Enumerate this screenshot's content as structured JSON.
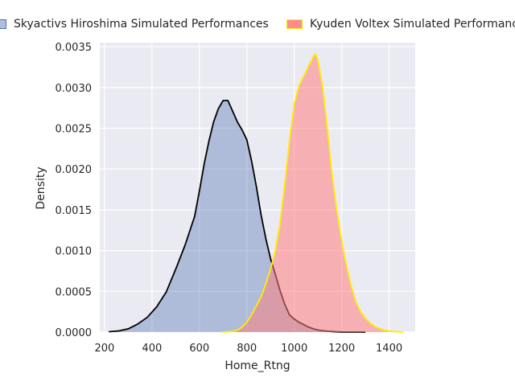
{
  "chart_data": {
    "type": "area",
    "title": "",
    "xlabel": "Home_Rtng",
    "ylabel": "Density",
    "xlim": [
      180,
      1510
    ],
    "ylim": [
      0,
      0.00355
    ],
    "x_ticks": [
      200,
      400,
      600,
      800,
      1000,
      1200,
      1400
    ],
    "y_ticks": [
      0.0,
      0.0005,
      0.001,
      0.0015,
      0.002,
      0.0025,
      0.003,
      0.0035
    ],
    "x_tick_labels": [
      "200",
      "400",
      "600",
      "800",
      "1000",
      "1200",
      "1400"
    ],
    "y_tick_labels": [
      "0.0000",
      "0.0005",
      "0.0010",
      "0.0015",
      "0.0020",
      "0.0025",
      "0.0030",
      "0.0035"
    ],
    "grid": true,
    "legend_placement": "top",
    "series": [
      {
        "name": "Skyactivs Hiroshima Simulated Performances",
        "fill": "#4c72b0",
        "stroke": "#000000",
        "x": [
          218,
          260,
          300,
          340,
          380,
          420,
          460,
          500,
          540,
          580,
          600,
          620,
          640,
          660,
          680,
          700,
          720,
          740,
          760,
          780,
          800,
          820,
          840,
          860,
          880,
          900,
          920,
          940,
          960,
          980,
          1000,
          1020,
          1040,
          1060,
          1080,
          1100,
          1120,
          1140,
          1160,
          1180,
          1200,
          1240,
          1280,
          1300
        ],
        "y": [
          5e-06,
          1.5e-05,
          4e-05,
          0.0001,
          0.00018,
          0.00031,
          0.00049,
          0.00077,
          0.00107,
          0.00142,
          0.00173,
          0.00206,
          0.00234,
          0.00258,
          0.00274,
          0.00284,
          0.00284,
          0.00271,
          0.00258,
          0.00248,
          0.00236,
          0.0021,
          0.00179,
          0.00144,
          0.00115,
          0.0009,
          0.00071,
          0.00051,
          0.00034,
          0.00021,
          0.00016,
          0.00012,
          9.2e-05,
          6.2e-05,
          4e-05,
          2.6e-05,
          1.7e-05,
          1.1e-05,
          7e-06,
          4e-06,
          2e-06,
          1e-06,
          5e-07,
          0.0
        ]
      },
      {
        "name": "Kyuden Voltex Simulated Performances",
        "fill": "#ff7f7f",
        "stroke": "#ffee00",
        "x": [
          695,
          720,
          740,
          760,
          780,
          800,
          820,
          840,
          860,
          880,
          900,
          920,
          940,
          960,
          980,
          1000,
          1020,
          1040,
          1060,
          1080,
          1090,
          1100,
          1120,
          1140,
          1160,
          1180,
          1200,
          1220,
          1240,
          1260,
          1280,
          1300,
          1320,
          1340,
          1360,
          1380,
          1400,
          1420,
          1440,
          1460
        ],
        "y": [
          0.0,
          5e-06,
          1e-05,
          2.5e-05,
          6e-05,
          0.00012,
          0.00021,
          0.00032,
          0.00043,
          0.00059,
          0.00077,
          0.001,
          0.00133,
          0.00182,
          0.00235,
          0.0028,
          0.00302,
          0.00314,
          0.00326,
          0.00338,
          0.00341,
          0.00333,
          0.003,
          0.00249,
          0.00192,
          0.00148,
          0.00112,
          0.00082,
          0.00057,
          0.00037,
          0.00025,
          0.00017,
          0.00011,
          7e-05,
          4.5e-05,
          2.5e-05,
          1.4e-05,
          7e-06,
          3e-06,
          0.0
        ]
      }
    ]
  }
}
